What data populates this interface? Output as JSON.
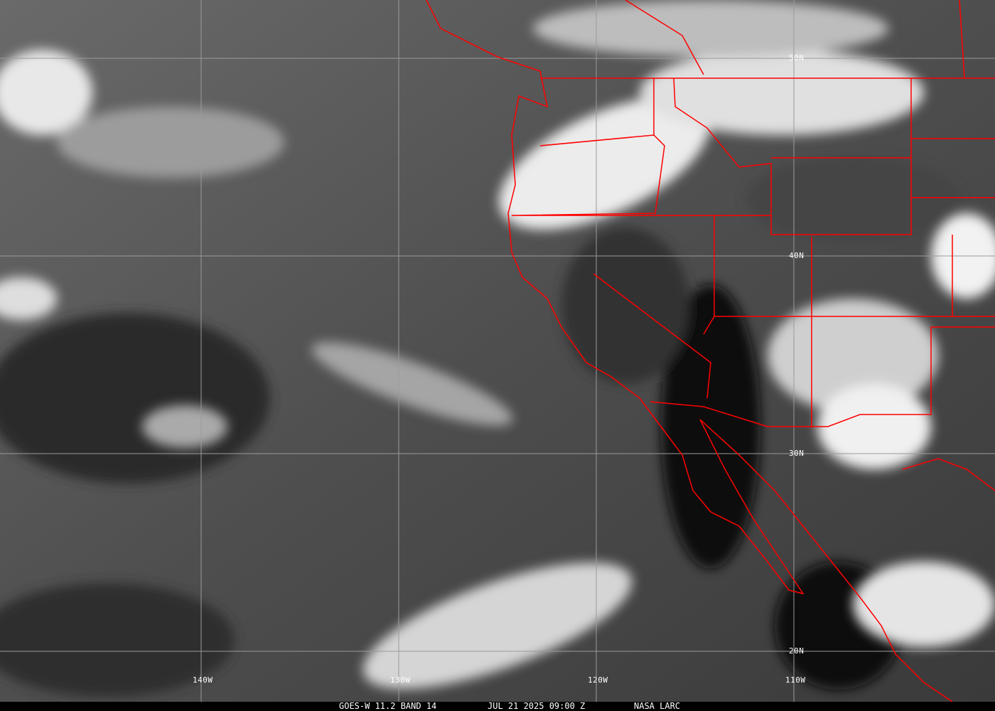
{
  "caption": {
    "satellite": "GOES-W 11.2 BAND 14",
    "datetime": "JUL 21 2025 09:00 Z",
    "source": "NASA LARC"
  },
  "grid": {
    "latitudes": [
      "50N",
      "40N",
      "30N",
      "20N"
    ],
    "longitudes": [
      "140W",
      "130W",
      "120W",
      "110W"
    ]
  },
  "colors": {
    "borders": "#ff0000",
    "grid": "#9a9a9a"
  }
}
